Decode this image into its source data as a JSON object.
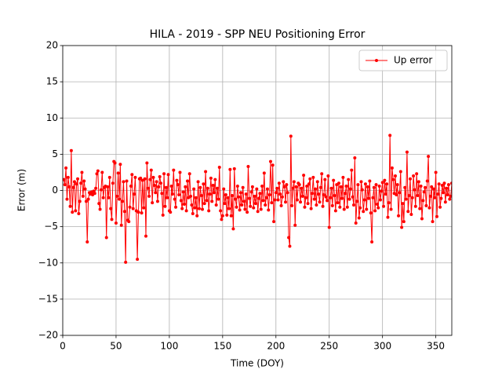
{
  "chart_data": {
    "type": "line",
    "title": "HILA - 2019 - SPP NEU Positioning Error",
    "x_label": "Time (DOY)",
    "y_label": "Error (m)",
    "xlim": [
      0,
      365
    ],
    "ylim": [
      -20,
      20
    ],
    "xticks": [
      0,
      50,
      100,
      150,
      200,
      250,
      300,
      350
    ],
    "yticks": [
      {
        "value": -20,
        "label": "−20"
      },
      {
        "value": -15,
        "label": "−15"
      },
      {
        "value": -10,
        "label": "−10"
      },
      {
        "value": -5,
        "label": "−5"
      },
      0,
      5,
      10,
      15,
      20
    ],
    "grid": true,
    "legend": "upper right",
    "x": [
      1,
      2,
      3,
      4,
      5,
      6,
      7,
      8,
      9,
      10,
      11,
      12,
      13,
      14,
      15,
      16,
      17,
      18,
      19,
      20,
      21,
      22,
      23,
      24,
      25,
      26,
      27,
      28,
      29,
      30,
      31,
      32,
      33,
      34,
      35,
      36,
      37,
      38,
      39,
      40,
      41,
      42,
      43,
      44,
      45,
      46,
      47,
      48,
      49,
      50,
      51,
      52,
      53,
      54,
      55,
      56,
      57,
      58,
      59,
      60,
      61,
      62,
      63,
      64,
      65,
      66,
      67,
      68,
      69,
      70,
      71,
      72,
      73,
      74,
      75,
      76,
      77,
      78,
      79,
      80,
      81,
      82,
      83,
      84,
      85,
      86,
      87,
      88,
      89,
      90,
      91,
      92,
      93,
      94,
      95,
      96,
      97,
      98,
      99,
      100,
      101,
      102,
      103,
      104,
      105,
      106,
      107,
      108,
      109,
      110,
      111,
      112,
      113,
      114,
      115,
      116,
      117,
      118,
      119,
      120,
      121,
      122,
      123,
      124,
      125,
      126,
      127,
      128,
      129,
      130,
      131,
      132,
      133,
      134,
      135,
      136,
      137,
      138,
      139,
      140,
      141,
      142,
      143,
      144,
      145,
      146,
      147,
      148,
      149,
      150,
      151,
      152,
      153,
      154,
      155,
      156,
      157,
      158,
      159,
      160,
      161,
      162,
      163,
      164,
      165,
      166,
      167,
      168,
      169,
      170,
      171,
      172,
      173,
      174,
      175,
      176,
      177,
      178,
      179,
      180,
      181,
      182,
      183,
      184,
      185,
      186,
      187,
      188,
      189,
      190,
      191,
      192,
      193,
      194,
      195,
      196,
      197,
      198,
      199,
      200,
      201,
      202,
      203,
      204,
      205,
      206,
      207,
      208,
      209,
      210,
      211,
      212,
      213,
      214,
      215,
      216,
      217,
      218,
      219,
      220,
      221,
      222,
      223,
      224,
      225,
      226,
      227,
      228,
      229,
      230,
      231,
      232,
      233,
      234,
      235,
      236,
      237,
      238,
      239,
      240,
      241,
      242,
      243,
      244,
      245,
      246,
      247,
      248,
      249,
      250,
      251,
      252,
      253,
      254,
      255,
      256,
      257,
      258,
      259,
      260,
      261,
      262,
      263,
      264,
      265,
      266,
      267,
      268,
      269,
      270,
      271,
      272,
      273,
      274,
      275,
      276,
      277,
      278,
      279,
      280,
      281,
      282,
      283,
      284,
      285,
      286,
      287,
      288,
      289,
      290,
      291,
      292,
      293,
      294,
      295,
      296,
      297,
      298,
      299,
      300,
      301,
      302,
      303,
      304,
      305,
      306,
      307,
      308,
      309,
      310,
      311,
      312,
      313,
      314,
      315,
      316,
      317,
      318,
      319,
      320,
      321,
      322,
      323,
      324,
      325,
      326,
      327,
      328,
      329,
      330,
      331,
      332,
      333,
      334,
      335,
      336,
      337,
      338,
      339,
      340,
      341,
      342,
      343,
      344,
      345,
      346,
      347,
      348,
      349,
      350,
      351,
      352,
      353,
      354,
      355,
      356,
      357,
      358,
      359,
      360,
      361,
      362,
      363,
      364,
      365
    ],
    "series": [
      {
        "name": "Up error",
        "color": "#ff0000",
        "values": [
          1.5,
          0.8,
          3.1,
          -1.2,
          1.8,
          0.5,
          -2.2,
          5.5,
          -3.0,
          0.4,
          1.2,
          -2.8,
          0.9,
          1.6,
          -3.2,
          -1.5,
          1.0,
          2.5,
          -0.8,
          1.3,
          0.2,
          -1.5,
          -7.1,
          -1.2,
          -0.3,
          -0.5,
          -0.2,
          -0.6,
          -0.1,
          -0.4,
          0.3,
          2.3,
          2.7,
          -1.8,
          -2.6,
          0.1,
          2.5,
          -1.0,
          0.4,
          0.6,
          -6.5,
          0.5,
          -1.0,
          1.8,
          -2.5,
          -4.0,
          1.0,
          4.0,
          3.8,
          -4.5,
          -0.8,
          2.4,
          -1.2,
          3.6,
          -4.8,
          -1.5,
          1.2,
          -2.9,
          -9.9,
          1.3,
          -4.1,
          -4.3,
          -2.3,
          0.6,
          2.2,
          -2.5,
          -0.5,
          1.8,
          -2.8,
          -9.5,
          -3.0,
          1.6,
          1.7,
          -3.1,
          1.4,
          -2.4,
          1.6,
          -6.3,
          3.8,
          0.3,
          -0.8,
          1.5,
          2.8,
          -1.7,
          1.8,
          0.7,
          -0.3,
          1.2,
          -1.5,
          0.5,
          1.9,
          1.0,
          -0.4,
          -3.4,
          2.3,
          -2.2,
          0.4,
          -1.0,
          2.2,
          -2.8,
          -3.0,
          0.6,
          -0.5,
          2.8,
          -1.2,
          -2.3,
          1.4,
          0.8,
          -0.6,
          2.5,
          -1.4,
          -2.5,
          -0.2,
          -1.9,
          0.5,
          -2.8,
          1.3,
          -1.0,
          2.3,
          -0.8,
          -2.0,
          -3.2,
          0.2,
          -2.4,
          -1.0,
          -3.5,
          1.2,
          -2.5,
          0.4,
          -0.7,
          -2.6,
          0.9,
          -1.8,
          2.6,
          -1.4,
          0.3,
          -2.8,
          -0.5,
          1.7,
          -1.5,
          0.7,
          -0.3,
          1.5,
          -2.0,
          0.3,
          -1.2,
          3.2,
          -2.8,
          -4.0,
          -3.5,
          0.2,
          -1.8,
          -0.6,
          -3.4,
          -1.0,
          -2.5,
          2.9,
          -3.5,
          -0.7,
          -5.3,
          3.0,
          -1.2,
          -2.3,
          0.6,
          -0.9,
          -2.7,
          -0.3,
          -2.0,
          0.4,
          -1.5,
          -2.6,
          -0.5,
          -3.0,
          3.3,
          -1.1,
          -2.2,
          -0.2,
          0.5,
          -2.4,
          -0.8,
          -1.8,
          0.2,
          -2.9,
          -1.1,
          -0.4,
          -2.6,
          0.6,
          -1.4,
          2.4,
          -2.0,
          -1.0,
          0.2,
          -2.7,
          -0.6,
          4.0,
          -1.7,
          3.5,
          -4.3,
          -1.3,
          -0.3,
          0.3,
          -1.3,
          1.0,
          -0.5,
          -2.1,
          -0.9,
          1.2,
          0.5,
          -1.6,
          0.8,
          -0.3,
          -6.5,
          -7.7,
          7.5,
          -2.1,
          0.3,
          1.2,
          -4.8,
          0.5,
          -1.3,
          1.0,
          0.8,
          -1.6,
          0.3,
          -0.8,
          2.1,
          -2.3,
          -1.0,
          0.6,
          -1.8,
          0.9,
          1.6,
          -2.5,
          -0.4,
          1.8,
          -1.2,
          0.2,
          -2.0,
          1.2,
          -0.5,
          -1.6,
          0.4,
          2.3,
          -2.2,
          -0.6,
          1.5,
          -0.9,
          -1.4,
          2.0,
          -5.1,
          -1.0,
          0.3,
          -2.1,
          1.4,
          -0.7,
          -2.8,
          0.8,
          -1.7,
          1.0,
          -2.3,
          0.5,
          -1.1,
          1.8,
          -2.6,
          -0.4,
          0.6,
          -2.3,
          1.5,
          -1.2,
          0.2,
          2.8,
          -0.9,
          -2.0,
          4.5,
          -4.5,
          -1.5,
          0.8,
          -3.8,
          -2.4,
          1.2,
          0.1,
          -2.9,
          -1.3,
          0.9,
          -2.6,
          0.5,
          -1.1,
          1.3,
          -3.1,
          -7.1,
          -1.0,
          0.4,
          -2.8,
          0.8,
          -1.9,
          -2.4,
          0.6,
          -1.3,
          -0.1,
          1.1,
          -2.2,
          1.4,
          -0.5,
          0.9,
          -3.7,
          -1.7,
          7.6,
          -2.6,
          3.1,
          1.5,
          -0.4,
          2.0,
          -0.6,
          0.8,
          -3.5,
          -0.3,
          2.6,
          -5.1,
          -1.8,
          -4.3,
          0.4,
          -1.2,
          5.3,
          -2.9,
          -0.7,
          1.6,
          -3.3,
          -1.0,
          2.0,
          0.1,
          -2.2,
          2.3,
          -0.7,
          1.2,
          -2.5,
          0.6,
          -3.9,
          -1.4,
          -0.2,
          0.4,
          -2.1,
          1.3,
          4.7,
          -2.4,
          -0.8,
          0.5,
          -4.3,
          0.2,
          -1.0,
          2.5,
          -3.6,
          -0.5,
          0.9,
          -2.3,
          -1.1,
          0.7,
          -0.3,
          1.0,
          -1.6,
          0.3,
          -0.6,
          0.8,
          -1.2,
          -0.8,
          1.0
        ]
      }
    ]
  }
}
